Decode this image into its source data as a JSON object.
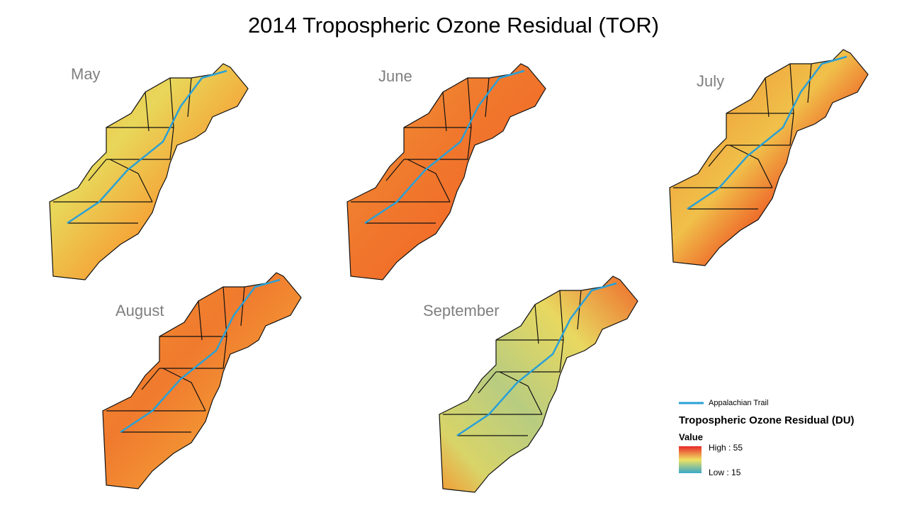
{
  "title": "2014 Tropospheric Ozone Residual (TOR)",
  "panels": [
    {
      "label": "May"
    },
    {
      "label": "June"
    },
    {
      "label": "July"
    },
    {
      "label": "August"
    },
    {
      "label": "September"
    }
  ],
  "legend": {
    "trail": "Appalachian Trail",
    "title": "Tropospheric Ozone Residual (DU)",
    "value": "Value",
    "high": "High : 55",
    "low": "Low : 15"
  }
}
